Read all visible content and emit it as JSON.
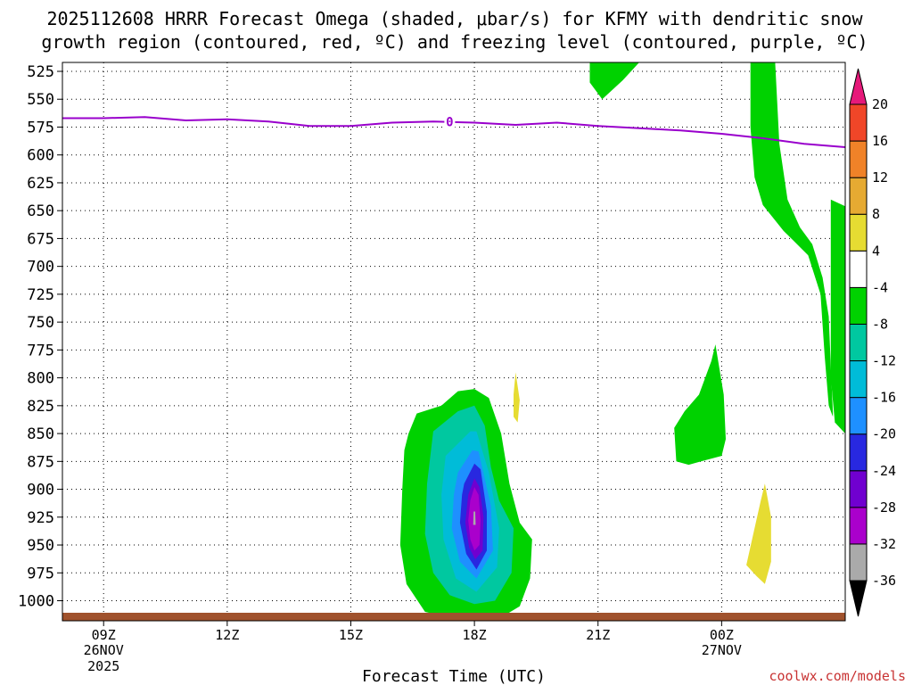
{
  "chart_data": {
    "type": "heatmap",
    "title_line1": "2025112608 HRRR Forecast Omega (shaded, μbar/s) for KFMY with dendritic snow",
    "title_line2": "growth region (contoured, red, ºC) and freezing level (contoured, purple, ºC)",
    "xlabel": "Forecast Time (UTC)",
    "ylabel": "",
    "credit": "coolwx.com/models",
    "x_hour_range": [
      8,
      27
    ],
    "y_range": [
      1018,
      517
    ],
    "y_ticks": [
      525,
      550,
      575,
      600,
      625,
      650,
      675,
      700,
      725,
      750,
      775,
      800,
      825,
      850,
      875,
      900,
      925,
      950,
      975,
      1000
    ],
    "y_tick_labels": [
      "525",
      "550",
      "575",
      "600",
      "625",
      "650",
      "675",
      "700",
      "725",
      "750",
      "775",
      "800",
      "825",
      "850",
      "875",
      "900",
      "925",
      "950",
      "975",
      "1000"
    ],
    "x_ticks": [
      {
        "hour": 9,
        "label": "09Z",
        "date": "26NOV",
        "year": "2025"
      },
      {
        "hour": 12,
        "label": "12Z"
      },
      {
        "hour": 15,
        "label": "15Z"
      },
      {
        "hour": 18,
        "label": "18Z"
      },
      {
        "hour": 21,
        "label": "21Z"
      },
      {
        "hour": 24,
        "label": "00Z",
        "date": "27NOV"
      }
    ],
    "colorbar": {
      "bounds": [
        -36,
        -32,
        -28,
        -24,
        -20,
        -16,
        -12,
        -8,
        -4,
        4,
        8,
        12,
        16,
        20
      ],
      "labels": [
        "-36",
        "-32",
        "-28",
        "-24",
        "-20",
        "-16",
        "-12",
        "-8",
        "-4",
        "4",
        "8",
        "12",
        "16",
        "20"
      ],
      "colors": [
        "#aaaaaa",
        "#aa00cc",
        "#7000d0",
        "#2828e0",
        "#1e90ff",
        "#00bcd8",
        "#00c8a0",
        "#00d200",
        "#ffffff",
        "#e6dc32",
        "#e6aa32",
        "#f08228",
        "#f04628"
      ],
      "under_color": "#000000",
      "over_color": "#e6197a"
    },
    "freezing_level": {
      "label": "0",
      "label_hour": 17.4,
      "color": "#9900cc",
      "points": [
        [
          8,
          567
        ],
        [
          9,
          567
        ],
        [
          10,
          566
        ],
        [
          11,
          569
        ],
        [
          12,
          568
        ],
        [
          13,
          570
        ],
        [
          14,
          574
        ],
        [
          15,
          574
        ],
        [
          16,
          571
        ],
        [
          17,
          570
        ],
        [
          18,
          571
        ],
        [
          19,
          573
        ],
        [
          20,
          571
        ],
        [
          21,
          574
        ],
        [
          22,
          576
        ],
        [
          23,
          578
        ],
        [
          24,
          581
        ],
        [
          25,
          585
        ],
        [
          26,
          590
        ],
        [
          27,
          593
        ]
      ]
    },
    "ground_color": "#a0522d",
    "omega_regions": [
      {
        "value": "-8",
        "color": "#00d200",
        "points": [
          [
            21.0,
            517
          ],
          [
            22.0,
            517
          ],
          [
            21.6,
            533
          ],
          [
            21.1,
            550
          ],
          [
            20.8,
            535
          ],
          [
            20.8,
            517
          ]
        ]
      },
      {
        "value": "-8",
        "color": "#00d200",
        "points": [
          [
            24.7,
            517
          ],
          [
            25.3,
            517
          ],
          [
            25.4,
            590
          ],
          [
            25.6,
            640
          ],
          [
            25.9,
            665
          ],
          [
            26.2,
            680
          ],
          [
            26.45,
            710
          ],
          [
            26.6,
            745
          ],
          [
            26.65,
            790
          ],
          [
            26.7,
            830
          ],
          [
            26.7,
            835
          ],
          [
            26.6,
            825
          ],
          [
            26.5,
            780
          ],
          [
            26.4,
            725
          ],
          [
            26.1,
            690
          ],
          [
            25.5,
            668
          ],
          [
            25.0,
            645
          ],
          [
            24.8,
            620
          ],
          [
            24.7,
            575
          ]
        ]
      },
      {
        "value": "-8",
        "color": "#00d200",
        "points": [
          [
            26.65,
            640
          ],
          [
            27.0,
            646
          ],
          [
            27.0,
            850
          ],
          [
            26.75,
            840
          ],
          [
            26.65,
            800
          ]
        ]
      },
      {
        "value": "-8",
        "color": "#00d200",
        "points": [
          [
            23.85,
            770
          ],
          [
            24.05,
            815
          ],
          [
            24.1,
            855
          ],
          [
            24.0,
            870
          ],
          [
            23.5,
            875
          ],
          [
            23.2,
            878
          ],
          [
            22.9,
            875
          ],
          [
            22.85,
            845
          ],
          [
            23.1,
            830
          ],
          [
            23.45,
            815
          ],
          [
            23.75,
            785
          ]
        ]
      },
      {
        "value": "4",
        "color": "#e6dc32",
        "points": [
          [
            19.0,
            795
          ],
          [
            19.1,
            820
          ],
          [
            19.05,
            840
          ],
          [
            18.95,
            835
          ],
          [
            18.95,
            815
          ]
        ]
      },
      {
        "value": "4",
        "color": "#e6dc32",
        "points": [
          [
            25.05,
            895
          ],
          [
            25.2,
            925
          ],
          [
            25.2,
            965
          ],
          [
            25.05,
            985
          ],
          [
            24.85,
            978
          ],
          [
            24.6,
            968
          ],
          [
            24.8,
            935
          ],
          [
            24.95,
            910
          ]
        ]
      },
      {
        "value": "-8",
        "color": "#00d200",
        "points": [
          [
            16.4,
            850
          ],
          [
            16.6,
            832
          ],
          [
            17.2,
            825
          ],
          [
            17.6,
            812
          ],
          [
            18.0,
            810
          ],
          [
            18.35,
            818
          ],
          [
            18.65,
            850
          ],
          [
            18.85,
            895
          ],
          [
            19.1,
            930
          ],
          [
            19.4,
            945
          ],
          [
            19.35,
            980
          ],
          [
            19.1,
            1005
          ],
          [
            18.65,
            1015
          ],
          [
            17.4,
            1015
          ],
          [
            16.8,
            1010
          ],
          [
            16.35,
            985
          ],
          [
            16.2,
            950
          ],
          [
            16.25,
            900
          ],
          [
            16.3,
            865
          ]
        ]
      },
      {
        "value": "-12",
        "color": "#00c8a0",
        "points": [
          [
            17.0,
            848
          ],
          [
            17.6,
            830
          ],
          [
            18.0,
            825
          ],
          [
            18.25,
            843
          ],
          [
            18.4,
            880
          ],
          [
            18.6,
            910
          ],
          [
            18.95,
            935
          ],
          [
            18.9,
            975
          ],
          [
            18.5,
            1000
          ],
          [
            18.0,
            1003
          ],
          [
            17.4,
            995
          ],
          [
            17.0,
            975
          ],
          [
            16.8,
            940
          ],
          [
            16.85,
            895
          ]
        ]
      },
      {
        "value": "-16",
        "color": "#00bcd8",
        "points": [
          [
            17.3,
            870
          ],
          [
            17.9,
            848
          ],
          [
            18.05,
            848
          ],
          [
            18.35,
            885
          ],
          [
            18.6,
            935
          ],
          [
            18.55,
            970
          ],
          [
            18.05,
            992
          ],
          [
            17.55,
            980
          ],
          [
            17.25,
            945
          ],
          [
            17.2,
            905
          ]
        ]
      },
      {
        "value": "-20",
        "color": "#1e90ff",
        "points": [
          [
            17.6,
            885
          ],
          [
            17.95,
            865
          ],
          [
            18.1,
            866
          ],
          [
            18.4,
            915
          ],
          [
            18.45,
            955
          ],
          [
            18.05,
            980
          ],
          [
            17.65,
            965
          ],
          [
            17.45,
            935
          ],
          [
            17.5,
            905
          ]
        ]
      },
      {
        "value": "-24",
        "color": "#2828e0",
        "points": [
          [
            17.75,
            895
          ],
          [
            18.0,
            877
          ],
          [
            18.15,
            882
          ],
          [
            18.3,
            920
          ],
          [
            18.3,
            955
          ],
          [
            18.05,
            972
          ],
          [
            17.8,
            958
          ],
          [
            17.65,
            930
          ],
          [
            17.7,
            905
          ]
        ]
      },
      {
        "value": "-28",
        "color": "#7000d0",
        "points": [
          [
            17.85,
            905
          ],
          [
            18.0,
            890
          ],
          [
            18.12,
            898
          ],
          [
            18.22,
            925
          ],
          [
            18.2,
            955
          ],
          [
            18.02,
            963
          ],
          [
            17.87,
            952
          ],
          [
            17.78,
            930
          ]
        ]
      },
      {
        "value": "-32",
        "color": "#aa00cc",
        "points": [
          [
            17.9,
            910
          ],
          [
            18.0,
            898
          ],
          [
            18.1,
            905
          ],
          [
            18.15,
            928
          ],
          [
            18.12,
            950
          ],
          [
            18.0,
            955
          ],
          [
            17.9,
            945
          ],
          [
            17.85,
            928
          ]
        ]
      },
      {
        "value": "-36",
        "color": "#aaaaaa",
        "points": [
          [
            17.98,
            920
          ],
          [
            18.02,
            920
          ],
          [
            18.03,
            932
          ],
          [
            17.97,
            932
          ]
        ]
      }
    ]
  }
}
